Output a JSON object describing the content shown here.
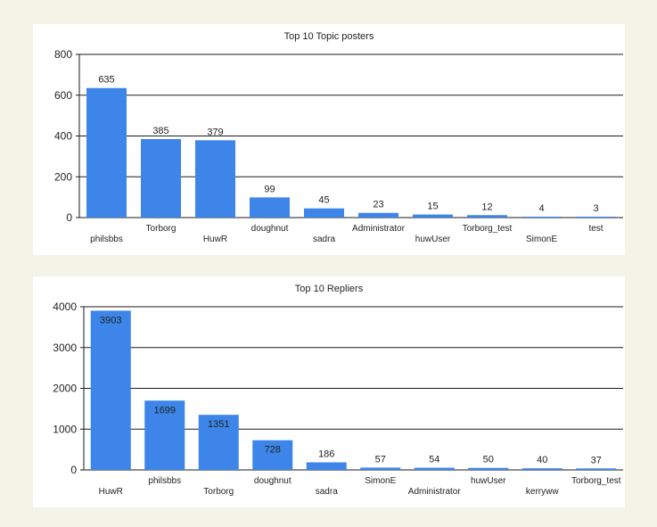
{
  "chart_data": [
    {
      "type": "bar",
      "title": "Top 10 Topic posters",
      "xlabel": "",
      "ylabel": "",
      "categories": [
        "philsbbs",
        "Torborg",
        "HuwR",
        "doughnut",
        "sadra",
        "Administrator",
        "huwUser",
        "Torborg_test",
        "SimonE",
        "test"
      ],
      "values": [
        635,
        385,
        379,
        99,
        45,
        23,
        15,
        12,
        4,
        3
      ],
      "yticks": [
        0,
        200,
        400,
        600,
        800
      ],
      "ylim": [
        0,
        800
      ],
      "grid": "horizontal",
      "bar_color": "#3d85e8"
    },
    {
      "type": "bar",
      "title": "Top 10 Repliers",
      "xlabel": "",
      "ylabel": "",
      "categories": [
        "HuwR",
        "philsbbs",
        "Torborg",
        "doughnut",
        "sadra",
        "SimonE",
        "Administrator",
        "huwUser",
        "kerryww",
        "Torborg_test"
      ],
      "values": [
        3903,
        1699,
        1351,
        728,
        186,
        57,
        54,
        50,
        40,
        37
      ],
      "yticks": [
        0,
        1000,
        2000,
        3000,
        4000
      ],
      "ylim": [
        0,
        4000
      ],
      "grid": "horizontal",
      "bar_color": "#3d85e8"
    }
  ]
}
